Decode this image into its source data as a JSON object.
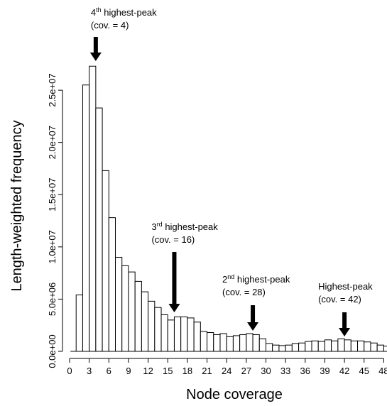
{
  "chart_data": {
    "type": "histogram",
    "xlabel": "Node coverage",
    "ylabel": "Length-weighted frequency",
    "bins": [
      1,
      2,
      3,
      4,
      5,
      6,
      7,
      8,
      9,
      10,
      11,
      12,
      13,
      14,
      15,
      16,
      17,
      18,
      19,
      20,
      21,
      22,
      23,
      24,
      25,
      26,
      27,
      28,
      29,
      30,
      31,
      32,
      33,
      34,
      35,
      36,
      37,
      38,
      39,
      40,
      41,
      42,
      43,
      44,
      45,
      46,
      47,
      48,
      49
    ],
    "values": [
      5400000,
      25500000,
      27300000,
      23300000,
      17300000,
      12800000,
      9000000,
      8200000,
      7600000,
      6700000,
      5700000,
      4800000,
      4200000,
      3500000,
      3000000,
      3300000,
      3300000,
      3200000,
      2800000,
      1900000,
      1800000,
      1600000,
      1700000,
      1400000,
      1500000,
      1600000,
      1700000,
      1600000,
      1200000,
      750000,
      600000,
      550000,
      600000,
      750000,
      800000,
      950000,
      1000000,
      950000,
      1100000,
      1000000,
      1200000,
      1100000,
      1000000,
      1000000,
      900000,
      800000,
      600000,
      500000
    ],
    "color": "#ffffff",
    "edge_color": "#000000",
    "xlim": [
      0,
      48.5
    ],
    "ylim": [
      0,
      28200000
    ],
    "xticks": [
      0,
      3,
      6,
      9,
      12,
      15,
      18,
      21,
      24,
      27,
      30,
      33,
      36,
      39,
      42,
      45,
      48
    ],
    "yticks": [
      {
        "value": 0,
        "label": "0.0e+00"
      },
      {
        "value": 5000000,
        "label": "5.0e+06"
      },
      {
        "value": 10000000,
        "label": "1.0e+07"
      },
      {
        "value": 15000000,
        "label": "1.5e+07"
      },
      {
        "value": 20000000,
        "label": "2.0e+07"
      },
      {
        "value": 25000000,
        "label": "2.5e+07"
      }
    ],
    "annotations": [
      {
        "x": 4,
        "lines": [
          [
            "4",
            "th",
            " highest-peak"
          ],
          [
            "(cov. = 4)"
          ]
        ]
      },
      {
        "x": 16,
        "lines": [
          [
            "3",
            "rd",
            " highest-peak"
          ],
          [
            "(cov. = 16)"
          ]
        ]
      },
      {
        "x": 28,
        "lines": [
          [
            "2",
            "nd",
            " highest-peak"
          ],
          [
            "(cov. = 28)"
          ]
        ]
      },
      {
        "x": 42,
        "lines": [
          [
            "Highest-peak"
          ],
          [
            "(cov. = 42)"
          ]
        ]
      }
    ]
  }
}
